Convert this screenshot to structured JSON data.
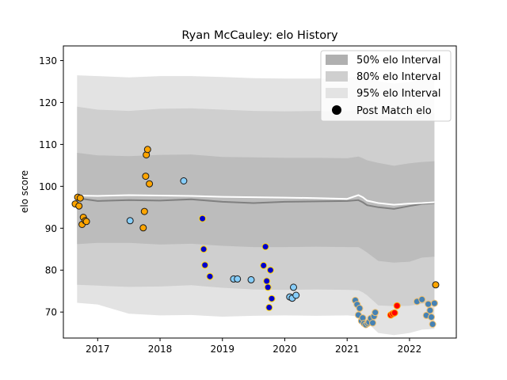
{
  "chart_data": {
    "type": "scatter",
    "title": "Ryan McCauley: elo History",
    "xlabel": "",
    "ylabel": "elo score",
    "xlim": [
      2016.45,
      2022.75
    ],
    "ylim": [
      63.8,
      133.5
    ],
    "xticks": [
      2017,
      2018,
      2019,
      2020,
      2021,
      2022
    ],
    "xtick_labels": [
      "2017",
      "2018",
      "2019",
      "2020",
      "2021",
      "2022"
    ],
    "yticks": [
      70,
      80,
      90,
      100,
      110,
      120,
      130
    ],
    "ytick_labels": [
      "70",
      "80",
      "90",
      "100",
      "110",
      "120",
      "130"
    ],
    "legend": {
      "position": "top-right",
      "entries": [
        "50% elo Interval",
        "80% elo Interval",
        "95% elo Interval",
        "Post Match elo"
      ]
    },
    "colors": {
      "band95": "#e3e3e3",
      "band80": "#cfcfcf",
      "band50": "#bcbcbc",
      "median_line": "#808080",
      "mean_line": "#ffffff",
      "orange_marker": "#ffa500",
      "lightblue_marker": "#87cefa",
      "blue_marker": "#0000cd",
      "steelblue_marker": "#4682b4",
      "red_marker": "#ff0000"
    },
    "bands": {
      "x": [
        2016.67,
        2017.0,
        2017.5,
        2018.0,
        2018.5,
        2019.0,
        2019.5,
        2020.0,
        2020.5,
        2021.0,
        2021.18,
        2021.25,
        2021.32,
        2021.5,
        2021.75,
        2022.0,
        2022.2,
        2022.4
      ],
      "p95_upper": [
        126.5,
        126.3,
        126.0,
        126.3,
        126.3,
        126.1,
        125.8,
        125.7,
        125.7,
        125.8,
        126.3,
        126.0,
        125.7,
        125.1,
        124.5,
        124.9,
        125.4,
        125.5
      ],
      "p95_lower": [
        72.2,
        71.8,
        69.6,
        69.2,
        69.3,
        68.9,
        69.1,
        69.2,
        69.1,
        69.2,
        69.0,
        68.5,
        67.5,
        65.0,
        64.5,
        65.0,
        65.8,
        66.0
      ],
      "p80_upper": [
        119.0,
        118.3,
        118.0,
        118.5,
        118.6,
        118.3,
        118.0,
        117.9,
        118.0,
        117.9,
        118.3,
        118.0,
        117.6,
        117.0,
        116.3,
        116.9,
        117.2,
        117.4
      ],
      "p80_lower": [
        76.5,
        76.3,
        76.0,
        76.1,
        76.4,
        75.8,
        75.4,
        75.3,
        75.4,
        75.3,
        75.2,
        74.7,
        74.0,
        71.6,
        71.4,
        71.5,
        72.0,
        72.3
      ],
      "p50_upper": [
        108.0,
        107.4,
        107.2,
        107.5,
        107.6,
        107.0,
        106.9,
        106.8,
        106.8,
        106.7,
        107.1,
        106.7,
        106.2,
        105.6,
        104.9,
        105.5,
        105.8,
        106.0
      ],
      "p50_lower": [
        86.2,
        86.5,
        86.5,
        86.1,
        86.3,
        85.8,
        85.5,
        85.5,
        85.6,
        85.5,
        85.5,
        84.9,
        84.2,
        82.2,
        81.8,
        82.0,
        83.0,
        83.2
      ],
      "median": [
        97.2,
        96.5,
        96.7,
        96.6,
        96.9,
        96.3,
        96.0,
        96.3,
        96.4,
        96.5,
        96.7,
        96.2,
        95.5,
        95.0,
        94.6,
        95.3,
        95.8,
        96.0
      ],
      "mean": [
        97.8,
        97.7,
        97.9,
        97.8,
        97.7,
        97.5,
        97.4,
        97.3,
        97.2,
        97.0,
        97.9,
        97.4,
        96.6,
        96.0,
        95.6,
        95.9,
        96.0,
        96.2
      ]
    },
    "series": [
      {
        "color_key": "orange_marker",
        "x": [
          2016.64,
          2016.68,
          2016.72,
          2016.7,
          2016.75,
          2016.77,
          2016.8,
          2016.82,
          2017.73,
          2017.75,
          2017.77,
          2017.78,
          2017.8,
          2017.83
        ],
        "y": [
          95.8,
          97.4,
          97.2,
          95.3,
          90.9,
          92.6,
          91.8,
          91.6,
          90.1,
          94.0,
          102.4,
          107.5,
          108.8,
          100.6
        ]
      },
      {
        "color_key": "lightblue_marker",
        "x": [
          2017.52,
          2018.38,
          2019.18,
          2019.24,
          2019.46,
          2020.08,
          2020.12,
          2020.14,
          2020.18
        ],
        "y": [
          91.8,
          101.3,
          77.9,
          77.9,
          77.7,
          73.6,
          73.3,
          75.9,
          74.0
        ]
      },
      {
        "color_key": "blue_marker",
        "x": [
          2018.68,
          2018.7,
          2018.72,
          2018.8,
          2019.66,
          2019.69,
          2019.71,
          2019.73,
          2019.75,
          2019.77,
          2019.79
        ],
        "y": [
          92.3,
          85.0,
          81.2,
          78.5,
          81.1,
          85.6,
          77.4,
          75.9,
          71.1,
          80.0,
          73.2
        ]
      },
      {
        "color_key": "steelblue_marker",
        "x": [
          2021.13,
          2021.16,
          2021.18,
          2021.2,
          2021.23,
          2021.25,
          2021.27,
          2021.3,
          2021.33,
          2021.35,
          2021.38,
          2021.41,
          2021.43,
          2021.45,
          2022.12,
          2022.2,
          2022.27,
          2022.3,
          2022.33,
          2022.35,
          2022.37,
          2022.4
        ],
        "y": [
          72.8,
          71.8,
          69.3,
          70.9,
          67.9,
          68.6,
          67.3,
          67.0,
          67.3,
          67.6,
          68.5,
          67.4,
          69.0,
          69.9,
          72.5,
          73.0,
          69.2,
          71.9,
          70.4,
          68.8,
          67.1,
          72.1
        ]
      },
      {
        "color_key": "red_marker",
        "x": [
          2021.7,
          2021.73,
          2021.76,
          2021.8
        ],
        "y": [
          69.3,
          69.6,
          69.8,
          71.5
        ]
      },
      {
        "color_key": "orange_marker",
        "x": [
          2022.42
        ],
        "y": [
          76.5
        ]
      }
    ]
  }
}
